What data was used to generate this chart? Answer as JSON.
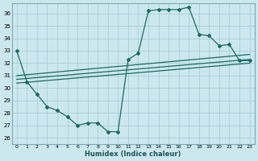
{
  "xlabel": "Humidex (Indice chaleur)",
  "ylabel": "",
  "bg_color": "#cce8ee",
  "grid_color": "#aacdd6",
  "line_color": "#1a6b60",
  "xlim": [
    -0.5,
    23.5
  ],
  "ylim": [
    25.5,
    36.8
  ],
  "xticks": [
    0,
    1,
    2,
    3,
    4,
    5,
    6,
    7,
    8,
    9,
    10,
    11,
    12,
    13,
    14,
    15,
    16,
    17,
    18,
    19,
    20,
    21,
    22,
    23
  ],
  "yticks": [
    26,
    27,
    28,
    29,
    30,
    31,
    32,
    33,
    34,
    35,
    36
  ],
  "series1_x": [
    0,
    1,
    2,
    3,
    4,
    5,
    6,
    7,
    8,
    9,
    10,
    11,
    12,
    13,
    14,
    15,
    16,
    17,
    18,
    19,
    20,
    21,
    22,
    23
  ],
  "series1_y": [
    33.0,
    30.5,
    29.5,
    28.5,
    28.2,
    27.7,
    27.0,
    27.2,
    27.2,
    26.5,
    26.5,
    32.3,
    32.8,
    36.2,
    36.3,
    36.3,
    36.3,
    36.5,
    34.3,
    34.2,
    33.4,
    33.5,
    32.2,
    32.2
  ],
  "line1_x": [
    0,
    23
  ],
  "line1_y": [
    30.4,
    32.0
  ],
  "line2_x": [
    0,
    23
  ],
  "line2_y": [
    30.7,
    32.3
  ],
  "line3_x": [
    0,
    23
  ],
  "line3_y": [
    31.0,
    32.7
  ]
}
